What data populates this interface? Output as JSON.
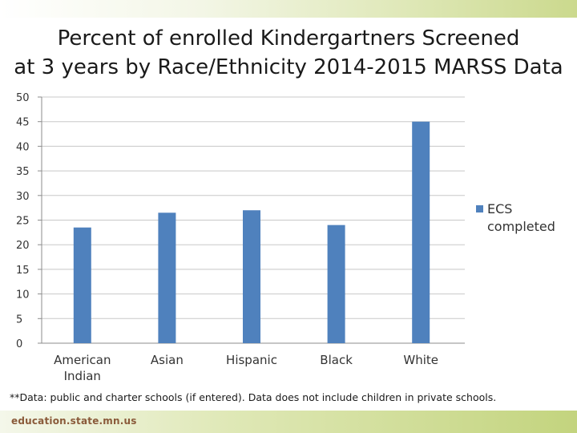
{
  "colors": {
    "bar": "#4f81bd",
    "grid": "#c8c8c8",
    "axis": "#8c8c8c"
  },
  "footer": {
    "note": "**Data: public  and charter schools (if entered). Data does not include children in private schools.",
    "site": "education.state.mn.us"
  },
  "chart_data": {
    "type": "bar",
    "title": "Percent of enrolled Kindergartners Screened at 3 years by Race/Ethnicity 2014-2015 MARSS Data",
    "title_lines": [
      "Percent of enrolled Kindergartners Screened",
      "at 3 years by Race/Ethnicity 2014-2015 MARSS Data"
    ],
    "categories": [
      [
        "American",
        "Indian"
      ],
      [
        "Asian"
      ],
      [
        "Hispanic"
      ],
      [
        "Black"
      ],
      [
        "White"
      ]
    ],
    "series": [
      {
        "name": "ECS completed",
        "values": [
          23.5,
          26.5,
          27,
          24,
          45
        ]
      }
    ],
    "legend_lines": [
      "ECS",
      "completed"
    ],
    "legend_position": "right",
    "ylim": [
      0,
      50
    ],
    "yticks": [
      0,
      5,
      10,
      15,
      20,
      25,
      30,
      35,
      40,
      45,
      50
    ],
    "grid": true,
    "xlabel": "",
    "ylabel": ""
  }
}
